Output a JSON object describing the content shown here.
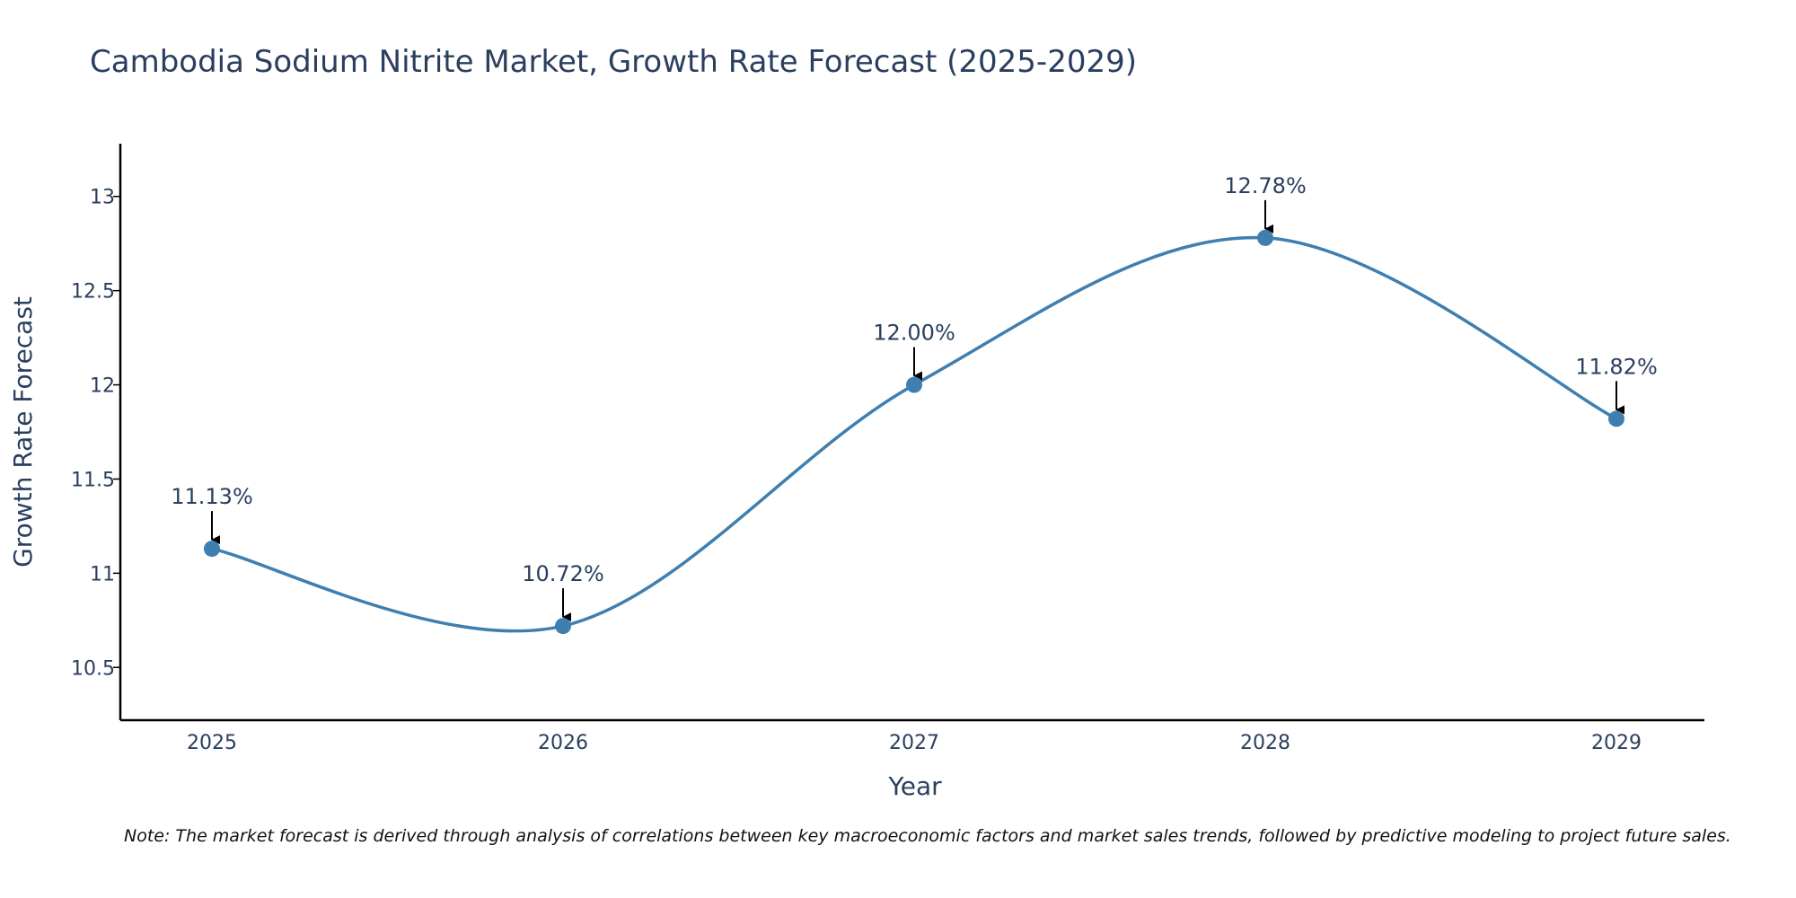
{
  "chart_data": {
    "type": "line",
    "title": "Cambodia Sodium Nitrite Market, Growth Rate Forecast (2025-2029)",
    "xlabel": "Year",
    "ylabel": "Growth Rate Forecast",
    "categories": [
      "2025",
      "2026",
      "2027",
      "2028",
      "2029"
    ],
    "values": [
      11.13,
      10.72,
      12.0,
      12.78,
      11.82
    ],
    "data_labels": [
      "11.13%",
      "10.72%",
      "12.00%",
      "12.78%",
      "11.82%"
    ],
    "ylim": [
      10.22,
      13.28
    ],
    "yticks": [
      10.5,
      11,
      11.5,
      12,
      12.5,
      13
    ],
    "ytick_labels": [
      "10.5",
      "11",
      "11.5",
      "12",
      "12.5",
      "13"
    ],
    "line_shape": "spline",
    "grid": false,
    "colors": {
      "line": "#3f7fb0",
      "marker": "#3f7fb0",
      "axis": "#000000",
      "arrow": "#000000"
    }
  },
  "note": "Note: The market forecast is derived through analysis of correlations between key macroeconomic factors and market sales trends, followed by predictive modeling to project future sales."
}
